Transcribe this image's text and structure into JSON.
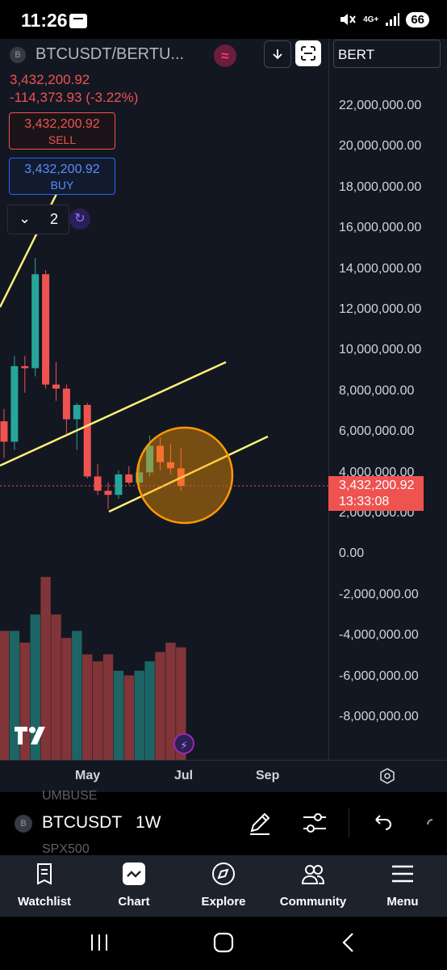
{
  "status_bar": {
    "time": "11:26",
    "network": "4G+",
    "battery": "66"
  },
  "symbol_bar": {
    "symbol": "BTCUSDT/BERTU...",
    "symbol_logo": "B",
    "currency_icon": "≈",
    "compare_value": "BERT"
  },
  "quote": {
    "price": "3,432,200.92",
    "change": "-114,373.93 (-3.22%)"
  },
  "trade": {
    "sell_price": "3,432,200.92",
    "sell_label": "SELL",
    "buy_price": "3,432,200.92",
    "buy_label": "BUY"
  },
  "layers": {
    "count": "2"
  },
  "y_axis": {
    "labels": [
      "22,000,000.00",
      "20,000,000.00",
      "18,000,000.00",
      "16,000,000.00",
      "14,000,000.00",
      "12,000,000.00",
      "10,000,000.00",
      "8,000,000.00",
      "6,000,000.00",
      "4,000,000.00",
      "2,000,000.00",
      "0.00",
      "-2,000,000.00",
      "-4,000,000.00",
      "-6,000,000.00",
      "-8,000,000.00"
    ]
  },
  "last_price_tag": {
    "price": "3,432,200.92",
    "countdown": "13:33:08"
  },
  "x_axis": {
    "labels": [
      "May",
      "Jul",
      "Sep"
    ]
  },
  "toolbar": {
    "symbol": "BTCUSDT",
    "symbol_logo": "B",
    "interval": "1W",
    "ghost_above": "UMBUSE",
    "ghost_below": "SPX500"
  },
  "nav": {
    "items": [
      {
        "label": "Watchlist"
      },
      {
        "label": "Chart"
      },
      {
        "label": "Explore"
      },
      {
        "label": "Community"
      },
      {
        "label": "Menu"
      }
    ]
  },
  "colors": {
    "up": "#26a69a",
    "down": "#ef5350",
    "trendline": "#fff176",
    "highlight": "#ff9800",
    "background": "#131722"
  },
  "chart_data": {
    "type": "candlestick",
    "x_ticks": [
      "May",
      "Jul",
      "Sep"
    ],
    "ylim": [
      -10000000,
      22500000
    ],
    "candles": [
      {
        "o": 6.6,
        "h": 7.2,
        "l": 4.8,
        "c": 5.6
      },
      {
        "o": 5.6,
        "h": 9.8,
        "l": 5.2,
        "c": 9.3
      },
      {
        "o": 9.3,
        "h": 9.8,
        "l": 8.0,
        "c": 9.2
      },
      {
        "o": 9.2,
        "h": 14.6,
        "l": 8.8,
        "c": 13.8
      },
      {
        "o": 13.8,
        "h": 14.0,
        "l": 8.2,
        "c": 8.4
      },
      {
        "o": 8.4,
        "h": 9.5,
        "l": 7.6,
        "c": 8.2
      },
      {
        "o": 8.2,
        "h": 8.4,
        "l": 6.0,
        "c": 6.7
      },
      {
        "o": 6.7,
        "h": 7.5,
        "l": 5.2,
        "c": 7.4
      },
      {
        "o": 7.4,
        "h": 7.5,
        "l": 3.8,
        "c": 3.9
      },
      {
        "o": 3.9,
        "h": 4.5,
        "l": 3.0,
        "c": 3.2
      },
      {
        "o": 3.2,
        "h": 3.6,
        "l": 2.3,
        "c": 3.0
      },
      {
        "o": 3.0,
        "h": 4.2,
        "l": 2.8,
        "c": 4.0
      },
      {
        "o": 4.0,
        "h": 4.4,
        "l": 3.5,
        "c": 3.6
      },
      {
        "o": 3.6,
        "h": 4.6,
        "l": 3.4,
        "c": 4.1
      },
      {
        "o": 4.1,
        "h": 5.9,
        "l": 3.9,
        "c": 5.4
      },
      {
        "o": 5.4,
        "h": 5.8,
        "l": 4.2,
        "c": 4.6
      },
      {
        "o": 4.6,
        "h": 5.5,
        "l": 4.0,
        "c": 4.3
      },
      {
        "o": 4.3,
        "h": 5.3,
        "l": 3.2,
        "c": 3.43
      }
    ],
    "volumes": [
      0.55,
      0.55,
      0.5,
      0.62,
      0.78,
      0.62,
      0.52,
      0.55,
      0.45,
      0.42,
      0.45,
      0.38,
      0.36,
      0.38,
      0.42,
      0.46,
      0.5,
      0.48
    ],
    "last_price": 3432200.92
  }
}
